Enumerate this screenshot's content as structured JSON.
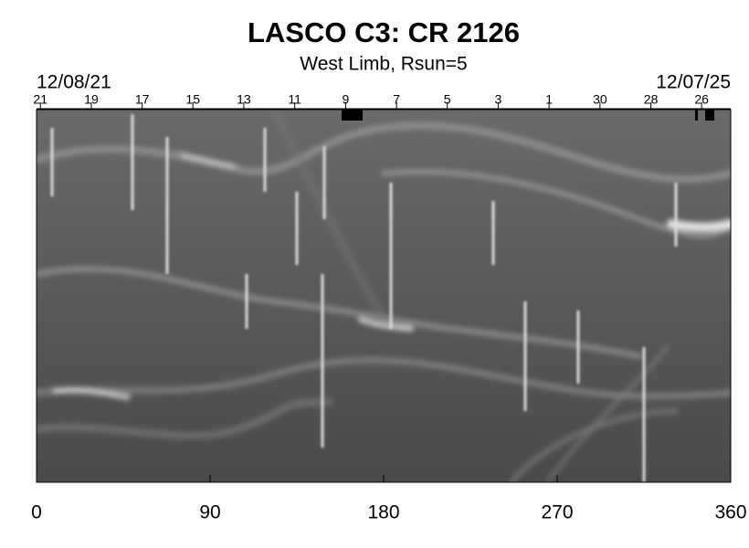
{
  "chart_data": {
    "type": "image",
    "title": "LASCO C3: CR 2126",
    "subtitle": "West Limb, Rsun=5",
    "start_date": "12/08/21",
    "end_date": "12/07/25",
    "xlim": [
      0,
      360
    ],
    "xticks": [
      0,
      90,
      180,
      270,
      360
    ],
    "x2ticks": [
      {
        "value": 2.0,
        "label": "21"
      },
      {
        "value": 28.4,
        "label": "19"
      },
      {
        "value": 54.8,
        "label": "17"
      },
      {
        "value": 81.1,
        "label": "15"
      },
      {
        "value": 107.5,
        "label": "13"
      },
      {
        "value": 133.9,
        "label": "11"
      },
      {
        "value": 160.3,
        "label": "9"
      },
      {
        "value": 186.7,
        "label": "7"
      },
      {
        "value": 213.0,
        "label": "5"
      },
      {
        "value": 239.4,
        "label": "3"
      },
      {
        "value": 265.8,
        "label": "1"
      },
      {
        "value": 292.2,
        "label": "30"
      },
      {
        "value": 318.6,
        "label": "28"
      },
      {
        "value": 344.9,
        "label": "26"
      }
    ]
  }
}
